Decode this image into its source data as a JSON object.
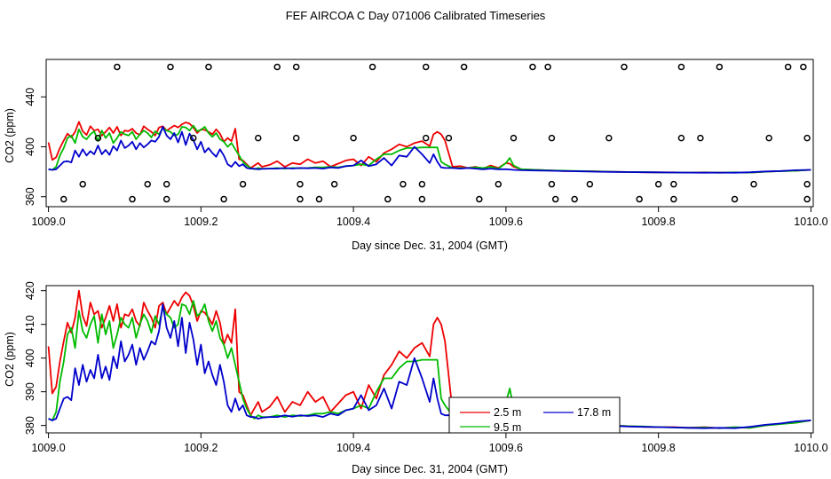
{
  "title": "FEF AIRCOA C  Day 071006  Calibrated Timeseries",
  "chart_data": [
    {
      "type": "line+scatter",
      "xlabel": "Day since Dec. 31, 2004 (GMT)",
      "ylabel": "CO2 (ppm)",
      "xlim": [
        1008.997,
        1010.003
      ],
      "ylim": [
        352,
        470
      ],
      "xticks": [
        1009.0,
        1009.2,
        1009.4,
        1009.6,
        1009.8,
        1010.0
      ],
      "xtick_labels": [
        "1009.0",
        "1009.2",
        "1009.4",
        "1009.6",
        "1009.8",
        "1010.0"
      ],
      "yticks": [
        360,
        400,
        440
      ],
      "ytick_labels": [
        "360",
        "400",
        "440"
      ],
      "series": [
        {
          "name": "red",
          "color": "#ee0000",
          "x": [
            1009.0,
            1009.005,
            1009.01,
            1009.015,
            1009.02,
            1009.025,
            1009.03,
            1009.035,
            1009.04,
            1009.045,
            1009.05,
            1009.055,
            1009.06,
            1009.065,
            1009.07,
            1009.075,
            1009.08,
            1009.085,
            1009.09,
            1009.095,
            1009.1,
            1009.105,
            1009.11,
            1009.115,
            1009.12,
            1009.125,
            1009.13,
            1009.135,
            1009.14,
            1009.145,
            1009.15,
            1009.155,
            1009.16,
            1009.165,
            1009.17,
            1009.175,
            1009.18,
            1009.185,
            1009.19,
            1009.195,
            1009.2,
            1009.205,
            1009.21,
            1009.215,
            1009.22,
            1009.225,
            1009.23,
            1009.235,
            1009.24,
            1009.245,
            1009.25,
            1009.255,
            1009.26,
            1009.265,
            1009.27,
            1009.275,
            1009.28,
            1009.29,
            1009.3,
            1009.31,
            1009.32,
            1009.33,
            1009.34,
            1009.35,
            1009.36,
            1009.37,
            1009.38,
            1009.39,
            1009.4,
            1009.41,
            1009.42,
            1009.43,
            1009.44,
            1009.45,
            1009.46,
            1009.47,
            1009.48,
            1009.49,
            1009.5,
            1009.505,
            1009.51,
            1009.515,
            1009.52,
            1009.53,
            1009.54,
            1009.55,
            1009.56,
            1009.57,
            1009.58,
            1009.59,
            1009.6,
            1009.605,
            1009.61,
            1009.62,
            1009.64,
            1009.66,
            1009.68,
            1009.7,
            1009.72,
            1009.74,
            1009.76,
            1009.78,
            1009.8,
            1009.82,
            1009.84,
            1009.86,
            1009.88,
            1009.9,
            1009.92,
            1009.94,
            1009.96,
            1009.98,
            1010.0
          ],
          "y": [
            403.5,
            389.5,
            391.5,
            399.0,
            405.0,
            410.5,
            407.5,
            412.0,
            420.0,
            412.5,
            409.5,
            416.5,
            413.0,
            414.0,
            409.0,
            412.0,
            415.5,
            411.0,
            416.0,
            409.0,
            413.0,
            412.5,
            414.5,
            411.0,
            409.5,
            416.5,
            414.0,
            412.0,
            409.0,
            415.5,
            416.5,
            413.0,
            415.0,
            417.0,
            415.5,
            418.0,
            419.5,
            418.5,
            415.5,
            411.0,
            414.0,
            413.5,
            412.0,
            410.0,
            414.0,
            410.5,
            404.0,
            407.0,
            404.5,
            414.5,
            390.0,
            389.0,
            386.0,
            383.0,
            385.0,
            387.0,
            384.0,
            385.5,
            388.5,
            384.0,
            387.0,
            386.0,
            390.0,
            387.0,
            388.5,
            384.0,
            386.5,
            389.0,
            390.0,
            385.0,
            392.0,
            388.0,
            395.0,
            398.0,
            402.0,
            400.0,
            403.0,
            404.5,
            400.5,
            410.0,
            412.0,
            410.0,
            405.0,
            384.0,
            384.5,
            383.0,
            384.0,
            382.5,
            385.0,
            383.0,
            387.0,
            386.5,
            384.0,
            382.0,
            381.5,
            381.0,
            380.5,
            380.5,
            380.3,
            380.0,
            379.8,
            379.6,
            379.5,
            379.5,
            379.3,
            379.5,
            379.2,
            379.4,
            379.3,
            380.0,
            380.5,
            380.8,
            381.5
          ]
        },
        {
          "name": "green",
          "color": "#00bb00",
          "x": [
            1009.0,
            1009.005,
            1009.01,
            1009.015,
            1009.02,
            1009.025,
            1009.03,
            1009.035,
            1009.04,
            1009.045,
            1009.05,
            1009.055,
            1009.06,
            1009.065,
            1009.07,
            1009.075,
            1009.08,
            1009.085,
            1009.09,
            1009.095,
            1009.1,
            1009.105,
            1009.11,
            1009.115,
            1009.12,
            1009.125,
            1009.13,
            1009.135,
            1009.14,
            1009.145,
            1009.15,
            1009.155,
            1009.16,
            1009.165,
            1009.17,
            1009.175,
            1009.18,
            1009.185,
            1009.19,
            1009.195,
            1009.2,
            1009.205,
            1009.21,
            1009.215,
            1009.22,
            1009.225,
            1009.23,
            1009.235,
            1009.24,
            1009.245,
            1009.25,
            1009.255,
            1009.26,
            1009.265,
            1009.27,
            1009.275,
            1009.28,
            1009.29,
            1009.3,
            1009.31,
            1009.32,
            1009.33,
            1009.34,
            1009.35,
            1009.36,
            1009.37,
            1009.38,
            1009.39,
            1009.4,
            1009.41,
            1009.42,
            1009.43,
            1009.44,
            1009.45,
            1009.46,
            1009.47,
            1009.48,
            1009.49,
            1009.5,
            1009.51,
            1009.515,
            1009.52,
            1009.53,
            1009.54,
            1009.55,
            1009.56,
            1009.57,
            1009.58,
            1009.59,
            1009.6,
            1009.605,
            1009.61,
            1009.62,
            1009.64,
            1009.66,
            1009.68,
            1009.7,
            1009.72,
            1009.74,
            1009.76,
            1009.78,
            1009.8,
            1009.82,
            1009.84,
            1009.86,
            1009.88,
            1009.9,
            1009.92,
            1009.94,
            1009.96,
            1009.98,
            1010.0
          ],
          "y": [
            382.0,
            381.5,
            384.0,
            393.0,
            399.0,
            407.0,
            409.0,
            403.0,
            414.0,
            408.0,
            406.0,
            410.0,
            412.5,
            404.5,
            413.0,
            407.0,
            411.0,
            403.0,
            407.0,
            412.0,
            410.0,
            409.0,
            412.0,
            406.0,
            410.0,
            413.0,
            411.0,
            407.5,
            412.5,
            410.0,
            415.0,
            413.0,
            412.0,
            409.0,
            410.0,
            416.0,
            415.5,
            413.0,
            417.0,
            412.5,
            413.5,
            416.0,
            411.0,
            408.0,
            411.0,
            406.0,
            404.0,
            400.0,
            403.0,
            398.0,
            393.0,
            388.0,
            385.0,
            383.0,
            382.0,
            383.0,
            382.5,
            382.5,
            383.0,
            382.5,
            383.0,
            382.8,
            383.0,
            383.5,
            383.5,
            384.0,
            383.5,
            384.5,
            385.0,
            386.0,
            385.0,
            390.0,
            394.0,
            394.0,
            397.0,
            399.0,
            399.0,
            399.5,
            399.5,
            399.5,
            388.0,
            386.0,
            383.0,
            383.0,
            383.0,
            383.5,
            383.0,
            384.0,
            382.5,
            387.0,
            391.0,
            385.0,
            382.0,
            381.5,
            381.0,
            380.8,
            380.5,
            380.2,
            380.0,
            379.8,
            379.7,
            379.5,
            379.4,
            379.3,
            379.4,
            379.2,
            379.5,
            379.3,
            380.0,
            380.4,
            380.8,
            381.5
          ]
        },
        {
          "name": "blue",
          "color": "#0000cc",
          "x": [
            1009.0,
            1009.005,
            1009.01,
            1009.015,
            1009.02,
            1009.025,
            1009.03,
            1009.035,
            1009.04,
            1009.045,
            1009.05,
            1009.055,
            1009.06,
            1009.065,
            1009.07,
            1009.075,
            1009.08,
            1009.085,
            1009.09,
            1009.095,
            1009.1,
            1009.105,
            1009.11,
            1009.115,
            1009.12,
            1009.125,
            1009.13,
            1009.135,
            1009.14,
            1009.145,
            1009.15,
            1009.155,
            1009.16,
            1009.165,
            1009.17,
            1009.175,
            1009.18,
            1009.185,
            1009.19,
            1009.195,
            1009.2,
            1009.205,
            1009.21,
            1009.215,
            1009.22,
            1009.225,
            1009.23,
            1009.235,
            1009.24,
            1009.245,
            1009.25,
            1009.255,
            1009.26,
            1009.265,
            1009.27,
            1009.275,
            1009.28,
            1009.29,
            1009.3,
            1009.31,
            1009.32,
            1009.33,
            1009.34,
            1009.35,
            1009.36,
            1009.37,
            1009.38,
            1009.39,
            1009.4,
            1009.41,
            1009.42,
            1009.43,
            1009.44,
            1009.45,
            1009.46,
            1009.47,
            1009.48,
            1009.49,
            1009.5,
            1009.505,
            1009.51,
            1009.515,
            1009.52,
            1009.53,
            1009.54,
            1009.55,
            1009.56,
            1009.57,
            1009.58,
            1009.59,
            1009.6,
            1009.605,
            1009.61,
            1009.62,
            1009.64,
            1009.66,
            1009.68,
            1009.7,
            1009.72,
            1009.74,
            1009.76,
            1009.78,
            1009.8,
            1009.82,
            1009.84,
            1009.86,
            1009.88,
            1009.9,
            1009.92,
            1009.94,
            1009.96,
            1009.98,
            1010.0
          ],
          "y": [
            382.0,
            381.5,
            382.0,
            385.0,
            388.0,
            388.5,
            387.5,
            397.0,
            392.0,
            398.0,
            393.0,
            396.5,
            394.0,
            401.0,
            394.0,
            397.5,
            393.5,
            400.5,
            397.0,
            405.0,
            399.0,
            401.0,
            404.0,
            398.0,
            403.0,
            399.5,
            402.0,
            405.0,
            404.0,
            408.0,
            416.0,
            409.0,
            406.0,
            411.0,
            403.5,
            412.0,
            401.5,
            410.5,
            405.5,
            398.0,
            404.0,
            395.5,
            399.0,
            395.0,
            392.0,
            398.0,
            393.0,
            386.0,
            384.0,
            388.0,
            384.5,
            386.0,
            383.0,
            382.5,
            382.5,
            382.0,
            382.3,
            382.5,
            382.5,
            383.0,
            382.6,
            383.0,
            382.8,
            383.0,
            382.5,
            383.5,
            383.0,
            384.5,
            385.0,
            389.0,
            384.5,
            386.0,
            391.0,
            385.0,
            393.0,
            392.0,
            400.0,
            394.0,
            387.0,
            394.0,
            388.0,
            383.5,
            383.0,
            383.0,
            382.5,
            383.0,
            382.5,
            382.0,
            382.5,
            382.0,
            382.0,
            381.8,
            381.5,
            381.2,
            381.0,
            380.8,
            380.5,
            380.3,
            380.0,
            379.9,
            379.7,
            379.6,
            379.5,
            379.4,
            379.3,
            379.2,
            379.3,
            379.2,
            379.6,
            380.2,
            380.6,
            381.2,
            381.5
          ]
        }
      ],
      "points": {
        "x": [
          1009.09,
          1009.16,
          1009.21,
          1009.3,
          1009.325,
          1009.425,
          1009.495,
          1009.545,
          1009.635,
          1009.655,
          1009.755,
          1009.83,
          1009.88,
          1009.97,
          1009.99,
          1009.065,
          1009.19,
          1009.275,
          1009.325,
          1009.4,
          1009.495,
          1009.525,
          1009.61,
          1009.66,
          1009.735,
          1009.83,
          1009.855,
          1009.945,
          1009.995,
          1009.045,
          1009.13,
          1009.155,
          1009.255,
          1009.33,
          1009.375,
          1009.465,
          1009.49,
          1009.59,
          1009.66,
          1009.71,
          1009.8,
          1009.82,
          1009.925,
          1009.995,
          1009.02,
          1009.11,
          1009.155,
          1009.23,
          1009.33,
          1009.355,
          1009.445,
          1009.49,
          1009.565,
          1009.665,
          1009.69,
          1009.775,
          1009.82,
          1009.9,
          1009.995
        ],
        "y": [
          464,
          464,
          464,
          464,
          464,
          464,
          464,
          464,
          464,
          464,
          464,
          464,
          464,
          464,
          464,
          407,
          407,
          407,
          407,
          407,
          407,
          407,
          407,
          407,
          407,
          407,
          407,
          407,
          407,
          370,
          370,
          370,
          370,
          370,
          370,
          370,
          370,
          370,
          370,
          370,
          370,
          370,
          370,
          370,
          358,
          358,
          358,
          358,
          358,
          358,
          358,
          358,
          358,
          358,
          358,
          358,
          358,
          358,
          358
        ]
      }
    },
    {
      "type": "line",
      "xlabel": "Day since Dec. 31, 2004 (GMT)",
      "ylabel": "CO2 (ppm)",
      "xlim": [
        1008.997,
        1010.003
      ],
      "ylim": [
        377.8,
        421.5
      ],
      "xticks": [
        1009.0,
        1009.2,
        1009.4,
        1009.6,
        1009.8,
        1010.0
      ],
      "xtick_labels": [
        "1009.0",
        "1009.2",
        "1009.4",
        "1009.6",
        "1009.8",
        "1010.0"
      ],
      "yticks": [
        380,
        390,
        400,
        410,
        420
      ],
      "ytick_labels": [
        "380",
        "390",
        "400",
        "410",
        "420"
      ],
      "legend": {
        "placement": "bottom-center",
        "entries": [
          {
            "label": "2.5 m",
            "color": "#ee0000"
          },
          {
            "label": "9.5 m",
            "color": "#00bb00"
          },
          {
            "label": "17.8 m",
            "color": "#0000cc"
          }
        ]
      },
      "series_ref": "same as panel 1 series: red = 2.5 m, green = 9.5 m, blue = 17.8 m"
    }
  ]
}
